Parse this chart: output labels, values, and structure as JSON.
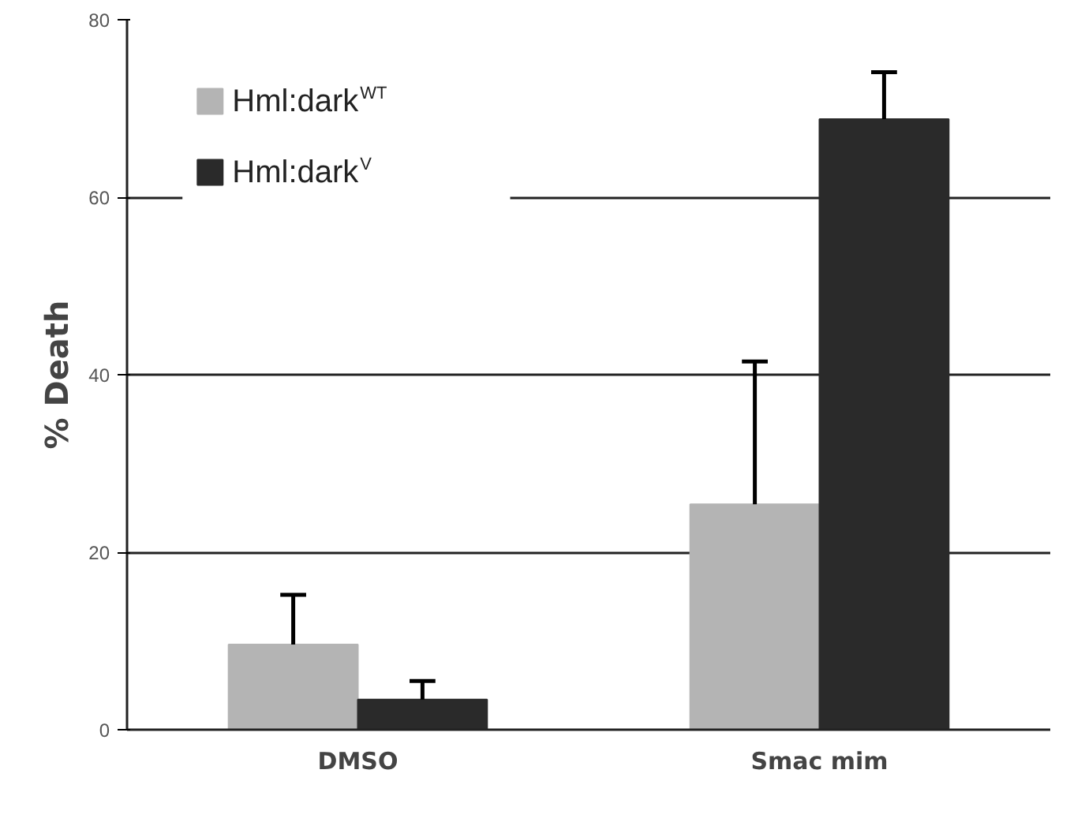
{
  "chart_data": {
    "type": "bar",
    "ylabel": "% Death",
    "categories": [
      "DMSO",
      "Smac mim"
    ],
    "series": [
      {
        "name": "Hml:dark$^{WT}$",
        "color": "#b4b4b4",
        "values": [
          9.6,
          25.4
        ],
        "errors": [
          [
            9.6,
            15.2
          ],
          [
            25.4,
            41.5
          ]
        ]
      },
      {
        "name": "Hml:dark$^{V}$",
        "color": "#2a2a2a",
        "values": [
          3.4,
          68.8
        ],
        "errors": [
          [
            3.4,
            5.5
          ],
          [
            68.8,
            74.1
          ]
        ]
      }
    ],
    "ylim": [
      0,
      80
    ],
    "yticks": [
      0,
      20,
      40,
      60,
      80
    ],
    "grid": "y",
    "legend": "top left"
  }
}
